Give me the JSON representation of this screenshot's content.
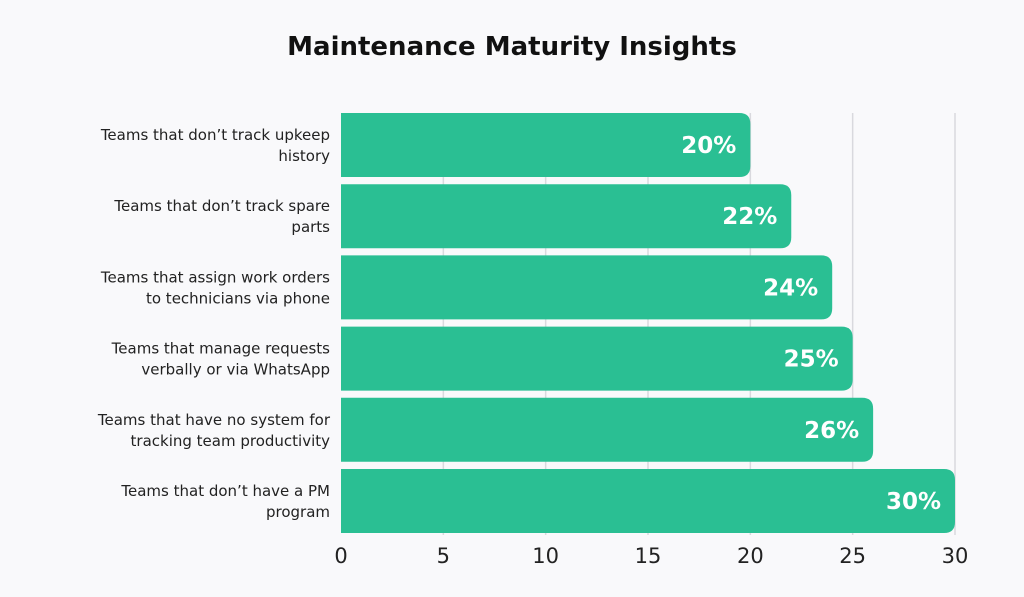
{
  "chart_data": {
    "type": "bar",
    "orientation": "horizontal",
    "title": "Maintenance Maturity Insights",
    "categories": [
      [
        "Teams that don’t track upkeep",
        "history"
      ],
      [
        "Teams that don’t track spare",
        "parts"
      ],
      [
        "Teams that assign work orders",
        "to technicians via phone"
      ],
      [
        "Teams that manage requests",
        "verbally or via WhatsApp"
      ],
      [
        "Teams that have no system for",
        "tracking team productivity"
      ],
      [
        "Teams that don’t have a PM",
        "program"
      ]
    ],
    "values": [
      20,
      22,
      24,
      25,
      26,
      30
    ],
    "data_labels": [
      "20%",
      "22%",
      "24%",
      "25%",
      "26%",
      "30%"
    ],
    "xlim": [
      0,
      30
    ],
    "xticks": [
      "0",
      "5",
      "10",
      "15",
      "20",
      "25",
      "30"
    ],
    "grid": true,
    "colors": {
      "bar": "#2abf93",
      "grid": "#d9d9de",
      "background": "#f9f9fb"
    }
  }
}
